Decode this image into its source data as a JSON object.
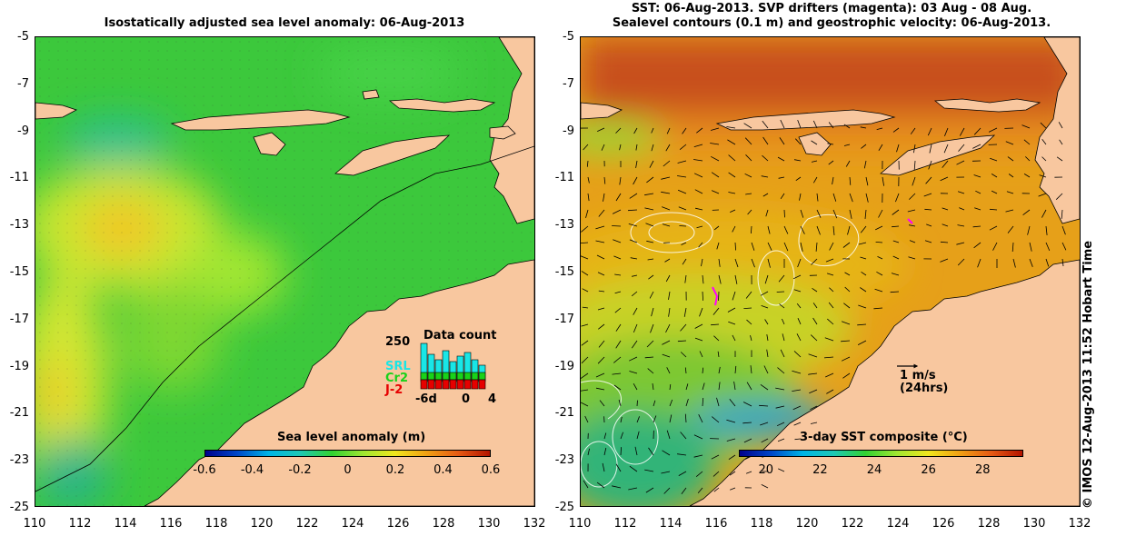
{
  "left_panel": {
    "title": "Isostatically adjusted sea level anomaly: 06-Aug-2013",
    "colorbar": {
      "title": "Sea level anomaly (m)",
      "ticks": [
        "-0.6",
        "-0.4",
        "-0.2",
        "0",
        "0.2",
        "0.4",
        "0.6"
      ],
      "range": [
        -0.6,
        0.6
      ]
    },
    "data_count": {
      "title": "Data count",
      "max_label": "250",
      "series": [
        "SRL",
        "Cr2",
        "J-2"
      ],
      "series_colors": [
        "#19e6e6",
        "#19d219",
        "#e60000"
      ],
      "x_labels": [
        "-6d",
        "0",
        "4"
      ]
    }
  },
  "right_panel": {
    "title_line1": "SST: 06-Aug-2013. SVP drifters (magenta): 03 Aug - 08 Aug.",
    "title_line2": "Sealevel contours (0.1 m) and geostrophic velocity: 06-Aug-2013.",
    "colorbar": {
      "title": "3-day SST composite (°C)",
      "ticks": [
        "20",
        "22",
        "24",
        "26",
        "28"
      ],
      "range": [
        19,
        29.5
      ]
    },
    "velocity_key": {
      "label": "1 m/s",
      "sublabel": "(24hrs)"
    }
  },
  "axes": {
    "lat_ticks": [
      "-5",
      "-7",
      "-9",
      "-11",
      "-13",
      "-15",
      "-17",
      "-19",
      "-21",
      "-23",
      "-25"
    ],
    "lon_ticks": [
      "110",
      "112",
      "114",
      "116",
      "118",
      "120",
      "122",
      "124",
      "126",
      "128",
      "130",
      "132"
    ],
    "lat_range": [
      -25,
      -5
    ],
    "lon_range": [
      110,
      132
    ]
  },
  "credit": "© IMOS 12-Aug-2013 11:52 Hobart Time",
  "colors": {
    "land": "#f8c79f",
    "sla_background": "#3cc83c",
    "sst_background": "#e6a019"
  }
}
